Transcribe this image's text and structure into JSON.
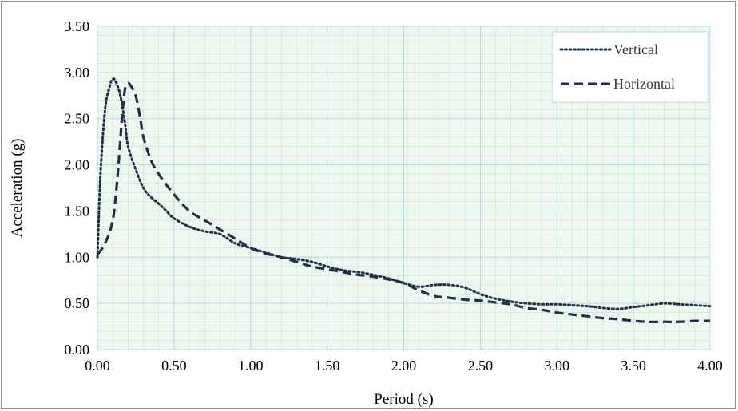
{
  "chart_data": {
    "type": "line",
    "title": "",
    "xlabel": "Period (s)",
    "ylabel": "Acceleration (g)",
    "xlim": [
      0,
      4
    ],
    "ylim": [
      0,
      3.5
    ],
    "x_ticks": [
      "0.00",
      "0.50",
      "1.00",
      "1.50",
      "2.00",
      "2.50",
      "3.00",
      "3.50",
      "4.00"
    ],
    "y_ticks": [
      "0.00",
      "0.50",
      "1.00",
      "1.50",
      "2.00",
      "2.50",
      "3.00",
      "3.50"
    ],
    "grid": true,
    "minor_grid": true,
    "legend_position": "top-right",
    "plot_background": "#eef6ee",
    "grid_color": "#a9dcea",
    "series": [
      {
        "name": "Vertical",
        "style": "dotted",
        "color": "#1f2f45",
        "x": [
          0.0,
          0.02,
          0.05,
          0.08,
          0.1,
          0.12,
          0.15,
          0.18,
          0.2,
          0.25,
          0.3,
          0.35,
          0.4,
          0.45,
          0.5,
          0.6,
          0.7,
          0.8,
          0.9,
          1.0,
          1.1,
          1.2,
          1.3,
          1.4,
          1.5,
          1.6,
          1.7,
          1.8,
          1.9,
          2.0,
          2.1,
          2.2,
          2.3,
          2.4,
          2.5,
          2.6,
          2.7,
          2.8,
          2.9,
          3.0,
          3.1,
          3.2,
          3.3,
          3.4,
          3.5,
          3.6,
          3.7,
          3.8,
          3.9,
          4.0
        ],
        "values": [
          1.0,
          1.9,
          2.6,
          2.85,
          2.93,
          2.9,
          2.75,
          2.45,
          2.2,
          1.95,
          1.75,
          1.65,
          1.58,
          1.5,
          1.42,
          1.33,
          1.28,
          1.25,
          1.15,
          1.1,
          1.05,
          1.0,
          0.98,
          0.95,
          0.9,
          0.86,
          0.84,
          0.81,
          0.77,
          0.72,
          0.68,
          0.7,
          0.7,
          0.67,
          0.6,
          0.55,
          0.52,
          0.5,
          0.49,
          0.49,
          0.48,
          0.47,
          0.45,
          0.44,
          0.46,
          0.48,
          0.5,
          0.49,
          0.48,
          0.47
        ]
      },
      {
        "name": "Horizontal",
        "style": "dashed",
        "color": "#1f2f45",
        "x": [
          0.0,
          0.05,
          0.1,
          0.13,
          0.16,
          0.18,
          0.2,
          0.22,
          0.25,
          0.28,
          0.3,
          0.35,
          0.4,
          0.5,
          0.6,
          0.7,
          0.8,
          0.9,
          1.0,
          1.1,
          1.2,
          1.3,
          1.4,
          1.5,
          1.6,
          1.7,
          1.8,
          1.9,
          2.0,
          2.1,
          2.2,
          2.3,
          2.4,
          2.5,
          2.6,
          2.7,
          2.8,
          2.9,
          3.0,
          3.1,
          3.2,
          3.3,
          3.4,
          3.5,
          3.6,
          3.7,
          3.8,
          3.9,
          4.0
        ],
        "values": [
          1.03,
          1.15,
          1.4,
          1.85,
          2.5,
          2.82,
          2.88,
          2.85,
          2.75,
          2.5,
          2.3,
          2.05,
          1.9,
          1.68,
          1.5,
          1.4,
          1.3,
          1.2,
          1.1,
          1.04,
          1.0,
          0.95,
          0.9,
          0.87,
          0.84,
          0.81,
          0.79,
          0.76,
          0.72,
          0.64,
          0.58,
          0.56,
          0.54,
          0.53,
          0.51,
          0.49,
          0.45,
          0.43,
          0.4,
          0.38,
          0.36,
          0.34,
          0.33,
          0.31,
          0.3,
          0.3,
          0.3,
          0.31,
          0.31
        ]
      }
    ]
  }
}
